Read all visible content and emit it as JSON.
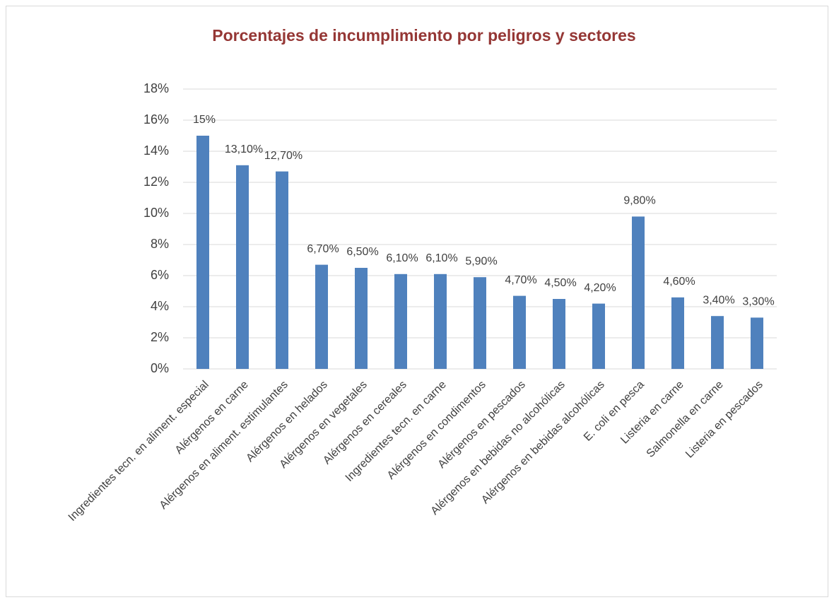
{
  "chart_data": {
    "type": "bar",
    "title": "Porcentajes de incumplimiento por peligros y sectores",
    "categories": [
      "Ingredientes tecn. en aliment. especial",
      "Alérgenos en carne",
      "Alérgenos en aliment. estimulantes",
      "Alérgenos en helados",
      "Alérgenos en vegetales",
      "Alérgenos en cereales",
      "Ingredientes tecn. en carne",
      "Alérgenos en condimentos",
      "Alérgenos en pescados",
      "Alérgenos en bebidas no alcohólicas",
      "Alérgenos en bebidas alcohólicas",
      "E. coli en pesca",
      "Listeria en carne",
      "Salmonella en carne",
      "Listeria en pescados"
    ],
    "values": [
      15,
      13.1,
      12.7,
      6.7,
      6.5,
      6.1,
      6.1,
      5.9,
      4.7,
      4.5,
      4.2,
      9.8,
      4.6,
      3.4,
      3.3
    ],
    "value_labels": [
      "15%",
      "13,10%",
      "12,70%",
      "6,70%",
      "6,50%",
      "6,10%",
      "6,10%",
      "5,90%",
      "4,70%",
      "4,50%",
      "4,20%",
      "9,80%",
      "4,60%",
      "3,40%",
      "3,30%"
    ],
    "color": "#4f81bd",
    "ylim": [
      0,
      18
    ],
    "yticks": [
      {
        "value": 0,
        "label": "0%"
      },
      {
        "value": 2,
        "label": "2%"
      },
      {
        "value": 4,
        "label": "4%"
      },
      {
        "value": 6,
        "label": "6%"
      },
      {
        "value": 8,
        "label": "8%"
      },
      {
        "value": 10,
        "label": "10%"
      },
      {
        "value": 12,
        "label": "12%"
      },
      {
        "value": 14,
        "label": "14%"
      },
      {
        "value": 16,
        "label": "16%"
      },
      {
        "value": 18,
        "label": "18%"
      }
    ],
    "grid": true
  }
}
